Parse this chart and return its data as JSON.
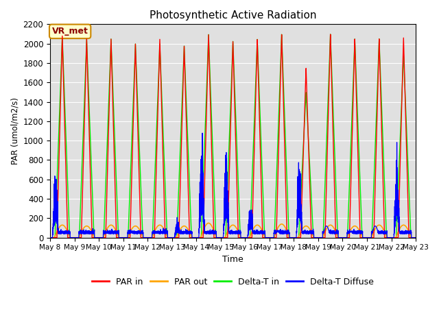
{
  "title": "Photosynthetic Active Radiation",
  "xlabel": "Time",
  "ylabel": "PAR (umol/m2/s)",
  "ylim": [
    0,
    2200
  ],
  "n_days": 15,
  "tick_labels": [
    "May 8",
    "May 9",
    "May 10",
    "May 11",
    "May 12",
    "May 13",
    "May 14",
    "May 15",
    "May 16",
    "May 17",
    "May 18",
    "May 19",
    "May 20",
    "May 21",
    "May 22",
    "May 23"
  ],
  "colors": {
    "PAR_in": "#ff0000",
    "PAR_out": "#ffa500",
    "Delta_T_in": "#00ee00",
    "Delta_T_diffuse": "#0000ff"
  },
  "legend_labels": [
    "PAR in",
    "PAR out",
    "Delta-T in",
    "Delta-T Diffuse"
  ],
  "annotation_text": "VR_met",
  "annotation_box_color": "#ffffcc",
  "annotation_border_color": "#cc8800",
  "background_color": "#e0e0e0",
  "grid_color": "#ffffff",
  "day_peak_PAR_in": [
    2080,
    2050,
    2050,
    2000,
    2050,
    1980,
    2100,
    2030,
    2050,
    2100,
    1750,
    2100,
    2050,
    2050,
    2060
  ],
  "day_peak_green": [
    2080,
    2050,
    2050,
    2000,
    2000,
    1980,
    2100,
    2030,
    2050,
    2100,
    1500,
    2100,
    2050,
    2050,
    1900
  ],
  "day_peak_orange": [
    130,
    120,
    130,
    120,
    130,
    120,
    150,
    130,
    130,
    140,
    120,
    130,
    120,
    130,
    130
  ],
  "day_peak_blue": [
    530,
    100,
    160,
    170,
    150,
    150,
    750,
    640,
    260,
    200,
    660,
    400,
    200,
    400,
    660
  ],
  "day_blue_noisy": [
    1,
    0,
    0,
    0,
    0,
    1,
    1,
    1,
    1,
    0,
    1,
    0,
    0,
    0,
    1
  ]
}
